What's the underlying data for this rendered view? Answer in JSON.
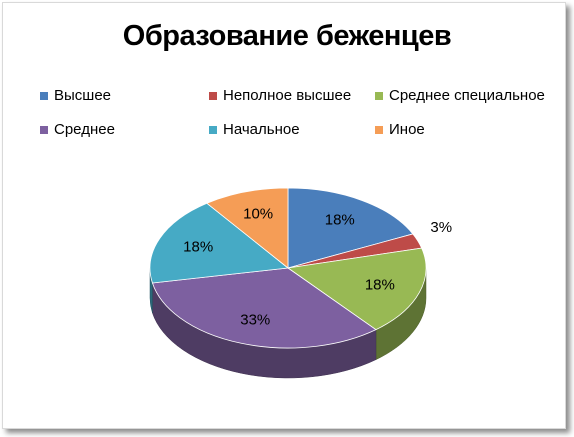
{
  "chart_data": {
    "type": "pie",
    "title": "Образование беженцев",
    "slices": [
      {
        "name": "Высшее",
        "value": 18,
        "label": "18%",
        "color": "#4a7ebb"
      },
      {
        "name": "Неполное высшее",
        "value": 3,
        "label": "3%",
        "color": "#be4b48"
      },
      {
        "name": "Среднее специальное",
        "value": 18,
        "label": "18%",
        "color": "#98b954"
      },
      {
        "name": "Среднее",
        "value": 33,
        "label": "33%",
        "color": "#7d60a0"
      },
      {
        "name": "Начальное",
        "value": 18,
        "label": "18%",
        "color": "#46aac5"
      },
      {
        "name": "Иное",
        "value": 10,
        "label": "10%",
        "color": "#f59d56"
      }
    ],
    "legend_position": "top",
    "three_d": true
  }
}
